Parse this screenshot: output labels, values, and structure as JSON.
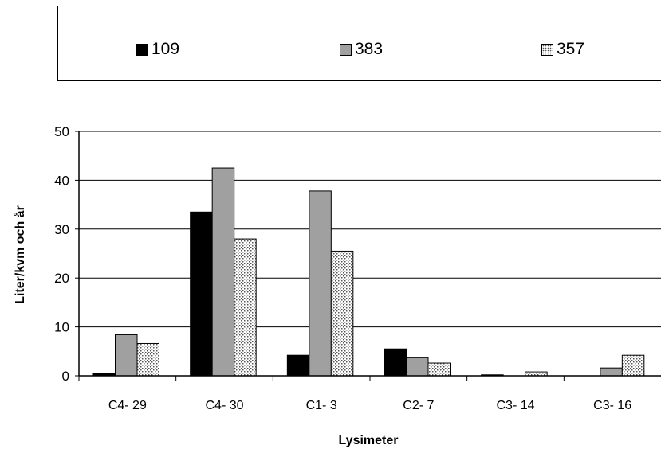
{
  "chart_data": {
    "type": "bar",
    "title": "",
    "xlabel": "Lysimeter",
    "ylabel": "Liter/kvm och år",
    "categories": [
      "C4- 29",
      "C4- 30",
      "C1- 3",
      "C2- 7",
      "C3- 14",
      "C3- 16"
    ],
    "series": [
      {
        "name": "109",
        "values": [
          0.5,
          33.5,
          4.2,
          5.5,
          0.2,
          0.0
        ],
        "color": "#000000",
        "pattern": "solid"
      },
      {
        "name": "383",
        "values": [
          8.4,
          42.5,
          37.8,
          3.7,
          0.0,
          1.6
        ],
        "color": "#a0a0a0",
        "pattern": "solid"
      },
      {
        "name": "357",
        "values": [
          6.6,
          28.0,
          25.5,
          2.6,
          0.8,
          4.2
        ],
        "color": "#ffffff",
        "pattern": "dots"
      }
    ],
    "ylim": [
      0,
      50
    ],
    "yticks": [
      0,
      10,
      20,
      30,
      40,
      50
    ],
    "grid": true,
    "legend_position": "top"
  }
}
